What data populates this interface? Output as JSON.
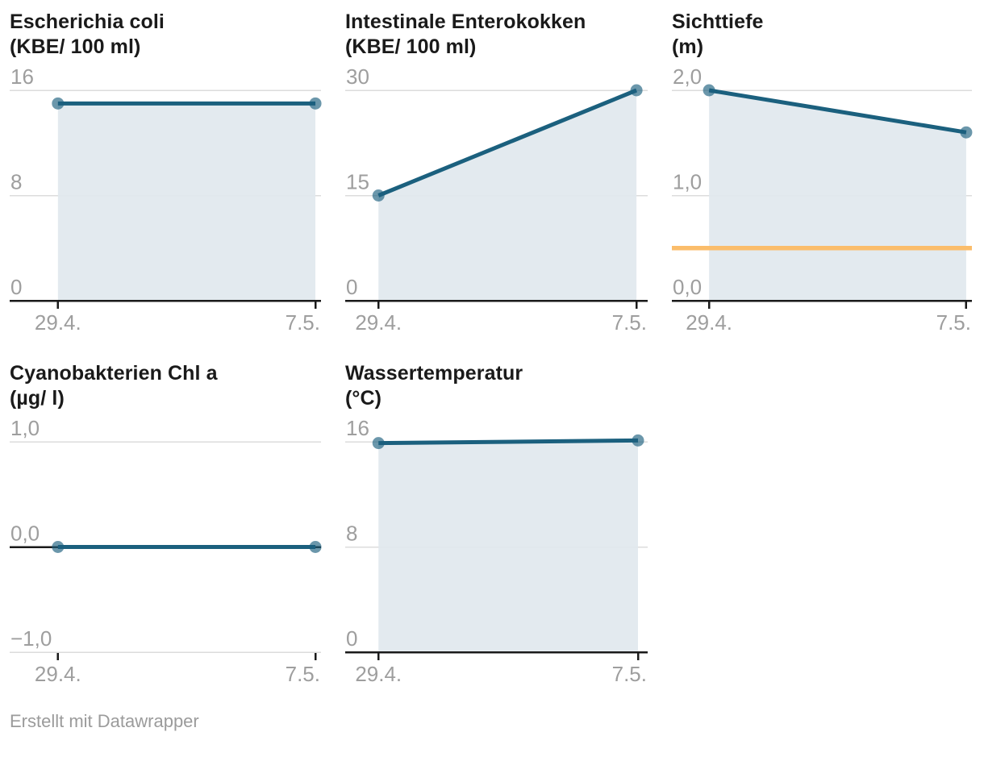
{
  "chart_data": [
    {
      "type": "area",
      "title_line1": "Escherichia coli",
      "title_line2": "(KBE/ 100 ml)",
      "categories": [
        "29.4.",
        "7.5."
      ],
      "values": [
        15,
        15
      ],
      "yticks": [
        {
          "value": 0,
          "label": "0"
        },
        {
          "value": 8,
          "label": "8"
        },
        {
          "value": 16,
          "label": "16"
        }
      ],
      "ylim": [
        0,
        16
      ],
      "reference_line": null,
      "grid": true,
      "legend": "none"
    },
    {
      "type": "area",
      "title_line1": "Intestinale Enterokokken",
      "title_line2": "(KBE/ 100 ml)",
      "categories": [
        "29.4.",
        "7.5."
      ],
      "values": [
        15,
        30
      ],
      "yticks": [
        {
          "value": 0,
          "label": "0"
        },
        {
          "value": 15,
          "label": "15"
        },
        {
          "value": 30,
          "label": "30"
        }
      ],
      "ylim": [
        0,
        30
      ],
      "reference_line": null,
      "grid": true,
      "legend": "none"
    },
    {
      "type": "area",
      "title_line1": "Sichttiefe",
      "title_line2": "(m)",
      "categories": [
        "29.4.",
        "7.5."
      ],
      "values": [
        2.0,
        1.6
      ],
      "yticks": [
        {
          "value": 0,
          "label": "0,0"
        },
        {
          "value": 1,
          "label": "1,0"
        },
        {
          "value": 2,
          "label": "2,0"
        }
      ],
      "ylim": [
        0,
        2
      ],
      "reference_line": {
        "value": 0.5,
        "color": "#fbbd6b"
      },
      "grid": true,
      "legend": "none"
    },
    {
      "type": "area",
      "title_line1": "Cyanobakterien Chl a",
      "title_line2": "(µg/ l)",
      "categories": [
        "29.4.",
        "7.5."
      ],
      "values": [
        0,
        0
      ],
      "yticks": [
        {
          "value": -1,
          "label": "−1,0"
        },
        {
          "value": 0,
          "label": "0,0"
        },
        {
          "value": 1,
          "label": "1,0"
        }
      ],
      "ylim": [
        -1,
        1
      ],
      "reference_line": null,
      "grid": true,
      "legend": "none"
    },
    {
      "type": "area",
      "title_line1": "Wassertemperatur",
      "title_line2": "(°C)",
      "categories": [
        "29.4.",
        "7.5."
      ],
      "values": [
        15.9,
        16.1
      ],
      "yticks": [
        {
          "value": 0,
          "label": "0"
        },
        {
          "value": 8,
          "label": "8"
        },
        {
          "value": 16,
          "label": "16"
        }
      ],
      "ylim": [
        0,
        16
      ],
      "reference_line": null,
      "grid": true,
      "legend": "none"
    }
  ],
  "colors": {
    "line": "#1b607e",
    "area": "#e1e8ee",
    "grid": "#dcdcdc",
    "axis": "#1a1a1a",
    "tick_text": "#9e9e9e",
    "title_text": "#1a1a1a",
    "footer_text": "#9b9b9b",
    "reference_orange": "#fbbd6b"
  },
  "footer": {
    "text": "Erstellt mit Datawrapper"
  }
}
